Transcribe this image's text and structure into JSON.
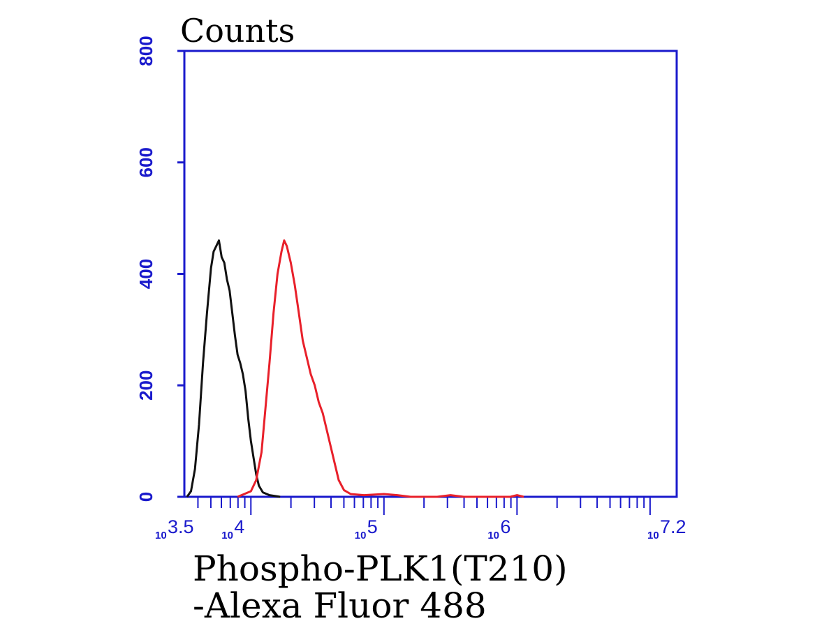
{
  "chart_data": {
    "type": "line",
    "title": "",
    "ylabel": "Counts",
    "xlabel_lines": [
      "Phospho-PLK1(T210)",
      "-Alexa Fluor 488"
    ],
    "x_scale": "log10",
    "xlim": [
      3.5,
      7.2
    ],
    "ylim": [
      0,
      800
    ],
    "grid": false,
    "y_ticks": [
      {
        "value": 0,
        "label": "0"
      },
      {
        "value": 200,
        "label": "200"
      },
      {
        "value": 400,
        "label": "400"
      },
      {
        "value": 600,
        "label": "600"
      },
      {
        "value": 800,
        "label": "800"
      }
    ],
    "x_ticks": [
      {
        "value": 3.5,
        "base": "10",
        "exp": "3.5"
      },
      {
        "value": 4,
        "base": "10",
        "exp": "4"
      },
      {
        "value": 5,
        "base": "10",
        "exp": "5"
      },
      {
        "value": 6,
        "base": "10",
        "exp": "6"
      },
      {
        "value": 7.2,
        "base": "10",
        "exp": "7.2"
      }
    ],
    "colors": {
      "axis": "#1a1acc",
      "tick_text": "#1a1acc"
    },
    "series": [
      {
        "color": "#111111",
        "points": [
          [
            3.52,
            0
          ],
          [
            3.55,
            10
          ],
          [
            3.58,
            50
          ],
          [
            3.61,
            130
          ],
          [
            3.64,
            240
          ],
          [
            3.67,
            330
          ],
          [
            3.7,
            410
          ],
          [
            3.72,
            440
          ],
          [
            3.74,
            450
          ],
          [
            3.76,
            460
          ],
          [
            3.78,
            430
          ],
          [
            3.8,
            420
          ],
          [
            3.82,
            390
          ],
          [
            3.84,
            370
          ],
          [
            3.86,
            330
          ],
          [
            3.88,
            290
          ],
          [
            3.9,
            255
          ],
          [
            3.92,
            240
          ],
          [
            3.94,
            220
          ],
          [
            3.96,
            190
          ],
          [
            3.98,
            140
          ],
          [
            4.0,
            100
          ],
          [
            4.02,
            70
          ],
          [
            4.04,
            40
          ],
          [
            4.06,
            20
          ],
          [
            4.09,
            8
          ],
          [
            4.14,
            3
          ],
          [
            4.22,
            0
          ]
        ]
      },
      {
        "color": "#e8202a",
        "points": [
          [
            3.9,
            0
          ],
          [
            4.0,
            10
          ],
          [
            4.04,
            30
          ],
          [
            4.08,
            80
          ],
          [
            4.11,
            160
          ],
          [
            4.14,
            240
          ],
          [
            4.17,
            330
          ],
          [
            4.2,
            400
          ],
          [
            4.23,
            440
          ],
          [
            4.25,
            460
          ],
          [
            4.27,
            450
          ],
          [
            4.3,
            420
          ],
          [
            4.33,
            380
          ],
          [
            4.36,
            330
          ],
          [
            4.39,
            280
          ],
          [
            4.42,
            250
          ],
          [
            4.45,
            220
          ],
          [
            4.48,
            200
          ],
          [
            4.51,
            170
          ],
          [
            4.54,
            150
          ],
          [
            4.57,
            120
          ],
          [
            4.6,
            90
          ],
          [
            4.63,
            60
          ],
          [
            4.66,
            30
          ],
          [
            4.7,
            12
          ],
          [
            4.75,
            5
          ],
          [
            4.85,
            3
          ],
          [
            5.0,
            5
          ],
          [
            5.1,
            3
          ],
          [
            5.2,
            0
          ],
          [
            5.4,
            0
          ],
          [
            5.5,
            3
          ],
          [
            5.6,
            0
          ],
          [
            5.95,
            0
          ],
          [
            6.0,
            3
          ],
          [
            6.05,
            0
          ]
        ]
      }
    ]
  }
}
